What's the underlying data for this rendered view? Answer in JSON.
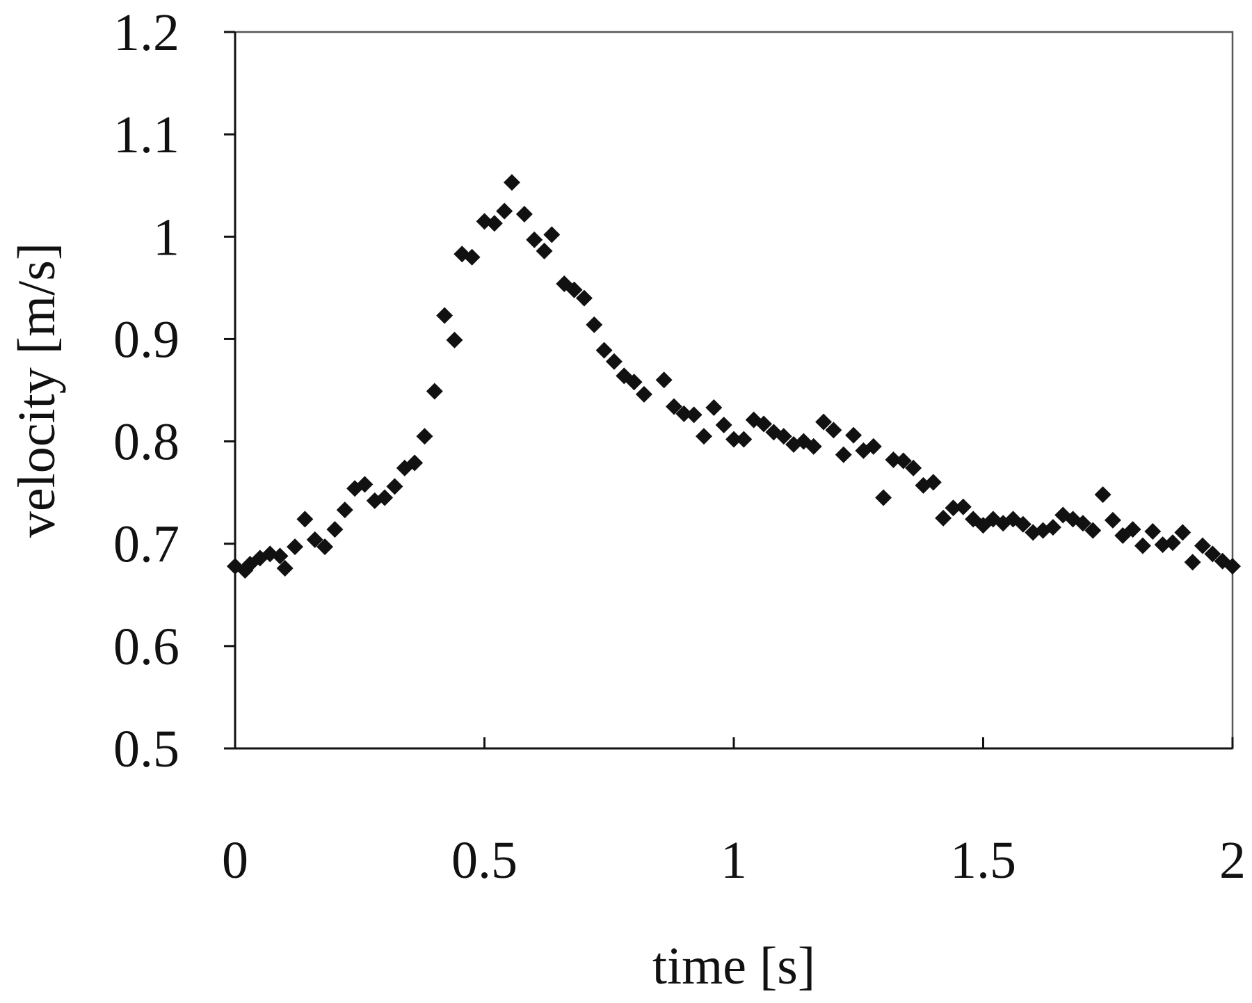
{
  "chart_data": {
    "type": "scatter",
    "title": "",
    "xlabel": "time [s]",
    "ylabel": "velocity [m/s]",
    "xlim": [
      0,
      2
    ],
    "ylim": [
      0.5,
      1.2
    ],
    "x_ticks": [
      "0",
      "0.5",
      "1",
      "1.5",
      "2"
    ],
    "y_ticks": [
      "0.5",
      "0.6",
      "0.7",
      "0.8",
      "0.9",
      "1",
      "1.1",
      "1.2"
    ],
    "grid": false,
    "marker": "diamond",
    "colors": {
      "marker": "#111111",
      "axis": "#111111",
      "frame": "#555555"
    },
    "series": [
      {
        "points": [
          [
            0.0,
            0.678
          ],
          [
            0.02,
            0.674
          ],
          [
            0.03,
            0.68
          ],
          [
            0.05,
            0.686
          ],
          [
            0.07,
            0.69
          ],
          [
            0.09,
            0.688
          ],
          [
            0.1,
            0.676
          ],
          [
            0.12,
            0.697
          ],
          [
            0.14,
            0.724
          ],
          [
            0.16,
            0.704
          ],
          [
            0.18,
            0.697
          ],
          [
            0.2,
            0.714
          ],
          [
            0.22,
            0.733
          ],
          [
            0.24,
            0.754
          ],
          [
            0.26,
            0.758
          ],
          [
            0.28,
            0.742
          ],
          [
            0.3,
            0.745
          ],
          [
            0.32,
            0.756
          ],
          [
            0.34,
            0.774
          ],
          [
            0.36,
            0.779
          ],
          [
            0.38,
            0.805
          ],
          [
            0.4,
            0.849
          ],
          [
            0.42,
            0.923
          ],
          [
            0.44,
            0.899
          ],
          [
            0.455,
            0.983
          ],
          [
            0.475,
            0.98
          ],
          [
            0.5,
            1.015
          ],
          [
            0.52,
            1.013
          ],
          [
            0.54,
            1.025
          ],
          [
            0.555,
            1.053
          ],
          [
            0.58,
            1.022
          ],
          [
            0.6,
            0.997
          ],
          [
            0.62,
            0.986
          ],
          [
            0.635,
            1.002
          ],
          [
            0.66,
            0.954
          ],
          [
            0.68,
            0.948
          ],
          [
            0.7,
            0.94
          ],
          [
            0.72,
            0.914
          ],
          [
            0.74,
            0.889
          ],
          [
            0.76,
            0.878
          ],
          [
            0.78,
            0.864
          ],
          [
            0.8,
            0.858
          ],
          [
            0.82,
            0.846
          ],
          [
            0.86,
            0.86
          ],
          [
            0.88,
            0.834
          ],
          [
            0.9,
            0.827
          ],
          [
            0.92,
            0.826
          ],
          [
            0.94,
            0.805
          ],
          [
            0.96,
            0.833
          ],
          [
            0.98,
            0.816
          ],
          [
            1.0,
            0.802
          ],
          [
            1.02,
            0.802
          ],
          [
            1.04,
            0.821
          ],
          [
            1.06,
            0.817
          ],
          [
            1.08,
            0.809
          ],
          [
            1.1,
            0.805
          ],
          [
            1.12,
            0.797
          ],
          [
            1.14,
            0.8
          ],
          [
            1.16,
            0.795
          ],
          [
            1.18,
            0.819
          ],
          [
            1.2,
            0.811
          ],
          [
            1.22,
            0.787
          ],
          [
            1.24,
            0.806
          ],
          [
            1.26,
            0.791
          ],
          [
            1.28,
            0.795
          ],
          [
            1.3,
            0.745
          ],
          [
            1.32,
            0.782
          ],
          [
            1.34,
            0.781
          ],
          [
            1.36,
            0.774
          ],
          [
            1.38,
            0.757
          ],
          [
            1.4,
            0.76
          ],
          [
            1.42,
            0.725
          ],
          [
            1.44,
            0.735
          ],
          [
            1.46,
            0.736
          ],
          [
            1.48,
            0.724
          ],
          [
            1.5,
            0.718
          ],
          [
            1.52,
            0.724
          ],
          [
            1.54,
            0.72
          ],
          [
            1.56,
            0.724
          ],
          [
            1.58,
            0.719
          ],
          [
            1.6,
            0.711
          ],
          [
            1.62,
            0.713
          ],
          [
            1.64,
            0.716
          ],
          [
            1.66,
            0.728
          ],
          [
            1.68,
            0.724
          ],
          [
            1.7,
            0.72
          ],
          [
            1.72,
            0.713
          ],
          [
            1.74,
            0.748
          ],
          [
            1.76,
            0.723
          ],
          [
            1.78,
            0.708
          ],
          [
            1.8,
            0.714
          ],
          [
            1.82,
            0.698
          ],
          [
            1.84,
            0.712
          ],
          [
            1.86,
            0.699
          ],
          [
            1.88,
            0.701
          ],
          [
            1.9,
            0.711
          ],
          [
            1.92,
            0.682
          ],
          [
            1.94,
            0.698
          ],
          [
            1.96,
            0.69
          ],
          [
            1.98,
            0.683
          ],
          [
            2.0,
            0.678
          ]
        ]
      }
    ]
  }
}
